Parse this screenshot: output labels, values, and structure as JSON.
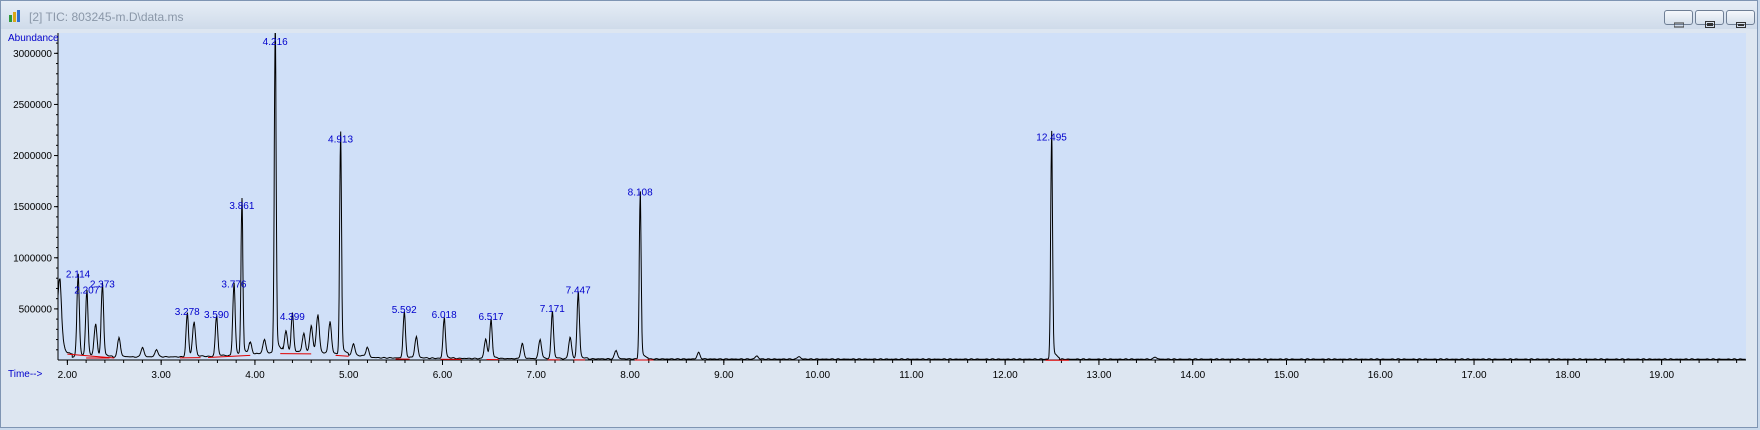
{
  "window": {
    "title": "[2] TIC: 803245-m.D\\data.ms",
    "controls": [
      {
        "name": "minimize-button",
        "icon": "minimize-icon"
      },
      {
        "name": "restore-button",
        "icon": "restore-icon"
      },
      {
        "name": "close-button",
        "icon": "close-icon"
      }
    ]
  },
  "colors": {
    "plot_bg": "#d0e0f8",
    "trace": "#000000",
    "baseline": "#e00000",
    "peak_label": "#0000cc",
    "axis_text": "#000000"
  },
  "chart_data": {
    "type": "line",
    "title": "",
    "ylabel": "Abundance",
    "xlabel": "Time-->",
    "xlim": [
      1.9,
      19.9
    ],
    "ylim": [
      0,
      3150000
    ],
    "grid": false,
    "x_ticks": [
      {
        "value": 2,
        "label": "2.00"
      },
      {
        "value": 3,
        "label": "3.00"
      },
      {
        "value": 4,
        "label": "4.00"
      },
      {
        "value": 5,
        "label": "5.00"
      },
      {
        "value": 6,
        "label": "6.00"
      },
      {
        "value": 7,
        "label": "7.00"
      },
      {
        "value": 8,
        "label": "8.00"
      },
      {
        "value": 9,
        "label": "9.00"
      },
      {
        "value": 10,
        "label": "10.00"
      },
      {
        "value": 11,
        "label": "11.00"
      },
      {
        "value": 12,
        "label": "12.00"
      },
      {
        "value": 13,
        "label": "13.00"
      },
      {
        "value": 14,
        "label": "14.00"
      },
      {
        "value": 15,
        "label": "15.00"
      },
      {
        "value": 16,
        "label": "16.00"
      },
      {
        "value": 17,
        "label": "17.00"
      },
      {
        "value": 18,
        "label": "18.00"
      },
      {
        "value": 19,
        "label": "19.00"
      }
    ],
    "y_ticks": [
      {
        "value": 500000,
        "label": "500000"
      },
      {
        "value": 1000000,
        "label": "1000000"
      },
      {
        "value": 1500000,
        "label": "1500000"
      },
      {
        "value": 2000000,
        "label": "2000000"
      },
      {
        "value": 2500000,
        "label": "2500000"
      },
      {
        "value": 3000000,
        "label": "3000000"
      }
    ],
    "labeled_peaks": [
      {
        "x": 2.114,
        "y": 780000,
        "label": "2.114"
      },
      {
        "x": 2.207,
        "y": 620000,
        "label": "2.207"
      },
      {
        "x": 2.373,
        "y": 680000,
        "label": "2.373"
      },
      {
        "x": 3.278,
        "y": 410000,
        "label": "3.278"
      },
      {
        "x": 3.59,
        "y": 380000,
        "label": "3.590"
      },
      {
        "x": 3.776,
        "y": 680000,
        "label": "3.776"
      },
      {
        "x": 3.861,
        "y": 1450000,
        "label": "3.861"
      },
      {
        "x": 4.216,
        "y": 3050000,
        "label": "4.216"
      },
      {
        "x": 4.399,
        "y": 360000,
        "label": "4.399"
      },
      {
        "x": 4.913,
        "y": 2100000,
        "label": "4.913"
      },
      {
        "x": 5.592,
        "y": 430000,
        "label": "5.592"
      },
      {
        "x": 6.018,
        "y": 380000,
        "label": "6.018"
      },
      {
        "x": 6.517,
        "y": 360000,
        "label": "6.517"
      },
      {
        "x": 7.171,
        "y": 440000,
        "label": "7.171"
      },
      {
        "x": 7.447,
        "y": 620000,
        "label": "7.447"
      },
      {
        "x": 8.108,
        "y": 1580000,
        "label": "8.108"
      },
      {
        "x": 12.495,
        "y": 2120000,
        "label": "12.495"
      }
    ],
    "minor_peaks": [
      {
        "x": 1.92,
        "y": 380000
      },
      {
        "x": 2.3,
        "y": 300000
      },
      {
        "x": 2.55,
        "y": 180000
      },
      {
        "x": 2.8,
        "y": 90000
      },
      {
        "x": 2.95,
        "y": 70000
      },
      {
        "x": 3.35,
        "y": 320000
      },
      {
        "x": 3.95,
        "y": 110000
      },
      {
        "x": 4.1,
        "y": 130000
      },
      {
        "x": 4.33,
        "y": 200000
      },
      {
        "x": 4.52,
        "y": 180000
      },
      {
        "x": 4.6,
        "y": 250000
      },
      {
        "x": 4.67,
        "y": 360000
      },
      {
        "x": 4.8,
        "y": 300000
      },
      {
        "x": 5.05,
        "y": 110000
      },
      {
        "x": 5.2,
        "y": 90000
      },
      {
        "x": 5.72,
        "y": 200000
      },
      {
        "x": 6.46,
        "y": 180000
      },
      {
        "x": 6.85,
        "y": 140000
      },
      {
        "x": 7.04,
        "y": 180000
      },
      {
        "x": 7.36,
        "y": 200000
      },
      {
        "x": 7.85,
        "y": 80000
      },
      {
        "x": 8.73,
        "y": 60000
      },
      {
        "x": 9.35,
        "y": 30000
      },
      {
        "x": 9.8,
        "y": 25000
      },
      {
        "x": 13.6,
        "y": 20000
      }
    ],
    "baseline_segments": [
      [
        2.0,
        2.5
      ],
      [
        2.2,
        2.45
      ],
      [
        3.2,
        3.42
      ],
      [
        3.5,
        3.95
      ],
      [
        4.27,
        4.6
      ],
      [
        4.86,
        5.0
      ],
      [
        5.5,
        5.65
      ],
      [
        5.98,
        6.2
      ],
      [
        6.47,
        6.6
      ],
      [
        7.12,
        7.25
      ],
      [
        7.4,
        7.52
      ],
      [
        8.05,
        8.25
      ],
      [
        12.43,
        12.68
      ]
    ]
  }
}
